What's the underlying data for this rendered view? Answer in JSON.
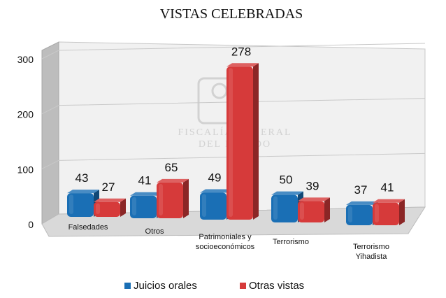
{
  "colors": {
    "juicios": "#1a6fb5",
    "otras": "#d63a3a",
    "wall": "#f1f1f1",
    "floor": "#d9d9d9",
    "watermark": "#d2d2d2"
  },
  "watermark": {
    "line1": "FISCALÍA GENERAL",
    "line2": "DEL ESTADO"
  },
  "chart_data": {
    "type": "bar",
    "title": "VISTAS CELEBRADAS",
    "categories": [
      [
        "Falsedades"
      ],
      [
        "Otros"
      ],
      [
        "Patrimoniales y",
        "socioeconómicos"
      ],
      [
        "Terrorismo"
      ],
      [
        "Terrorismo",
        "Yihadista"
      ]
    ],
    "series": [
      {
        "name": "Juicios orales",
        "values": [
          43,
          41,
          49,
          50,
          37
        ]
      },
      {
        "name": "Otras vistas",
        "values": [
          27,
          65,
          278,
          39,
          41
        ]
      }
    ],
    "yticks": [
      0,
      100,
      200,
      300
    ],
    "ylim": [
      0,
      300
    ],
    "grid": true,
    "legend": "bottom",
    "xlabel": "",
    "ylabel": ""
  }
}
